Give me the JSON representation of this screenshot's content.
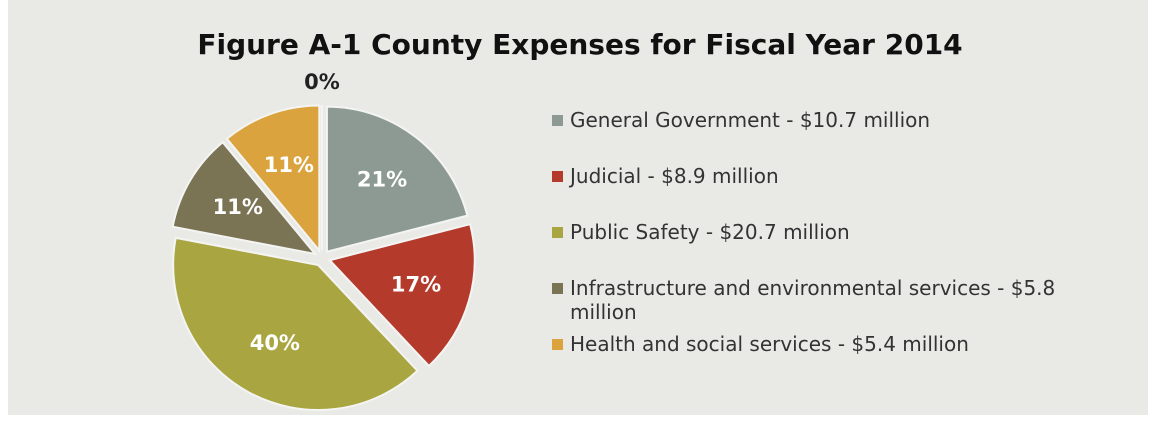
{
  "chart_data": {
    "type": "pie",
    "title": "Figure A-1 County Expenses for Fiscal Year 2014",
    "categories": [
      "General Government - $10.7 million",
      "Judicial - $8.9 million",
      "Public Safety - $20.7 million",
      "Infrastructure and environmental services - $5.8 million",
      "Health and social services - $5.4 million",
      null
    ],
    "values": [
      21,
      17,
      40,
      11,
      11,
      0
    ],
    "value_labels": [
      "21%",
      "17%",
      "40%",
      "11%",
      "11%",
      "0%"
    ],
    "colors": [
      "#8d9a94",
      "#b43a2b",
      "#a9a541",
      "#7b7454",
      "#dba33d",
      "#bfbfbf"
    ],
    "legend": "right"
  }
}
